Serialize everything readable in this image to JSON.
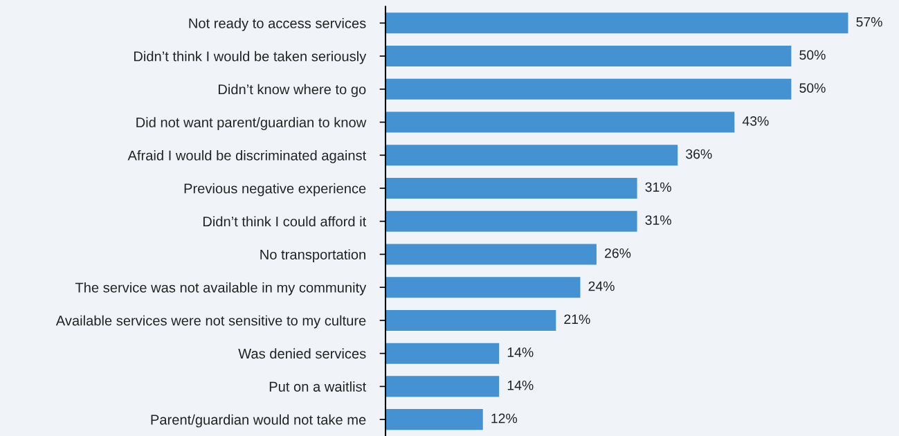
{
  "chart_data": {
    "type": "bar",
    "orientation": "horizontal",
    "color": "#4592d2",
    "categories": [
      "Not ready to access services",
      "Didn’t think I would be taken seriously",
      "Didn’t know where to go",
      "Did not want parent/guardian to know",
      "Afraid I would be discriminated against",
      "Previous negative experience",
      "Didn’t think I could afford it",
      "No transportation",
      "The service was not available in my community",
      "Available services were not sensitive to my culture",
      "Was denied services",
      "Put on a waitlist",
      "Parent/guardian would not take me"
    ],
    "values": [
      57,
      50,
      50,
      43,
      36,
      31,
      31,
      26,
      24,
      21,
      14,
      14,
      12
    ],
    "value_labels": [
      "57%",
      "50%",
      "50%",
      "43%",
      "36%",
      "31%",
      "31%",
      "26%",
      "24%",
      "21%",
      "14%",
      "14%",
      "12%"
    ],
    "grid": false,
    "legend": false,
    "tick_labels": "y"
  }
}
